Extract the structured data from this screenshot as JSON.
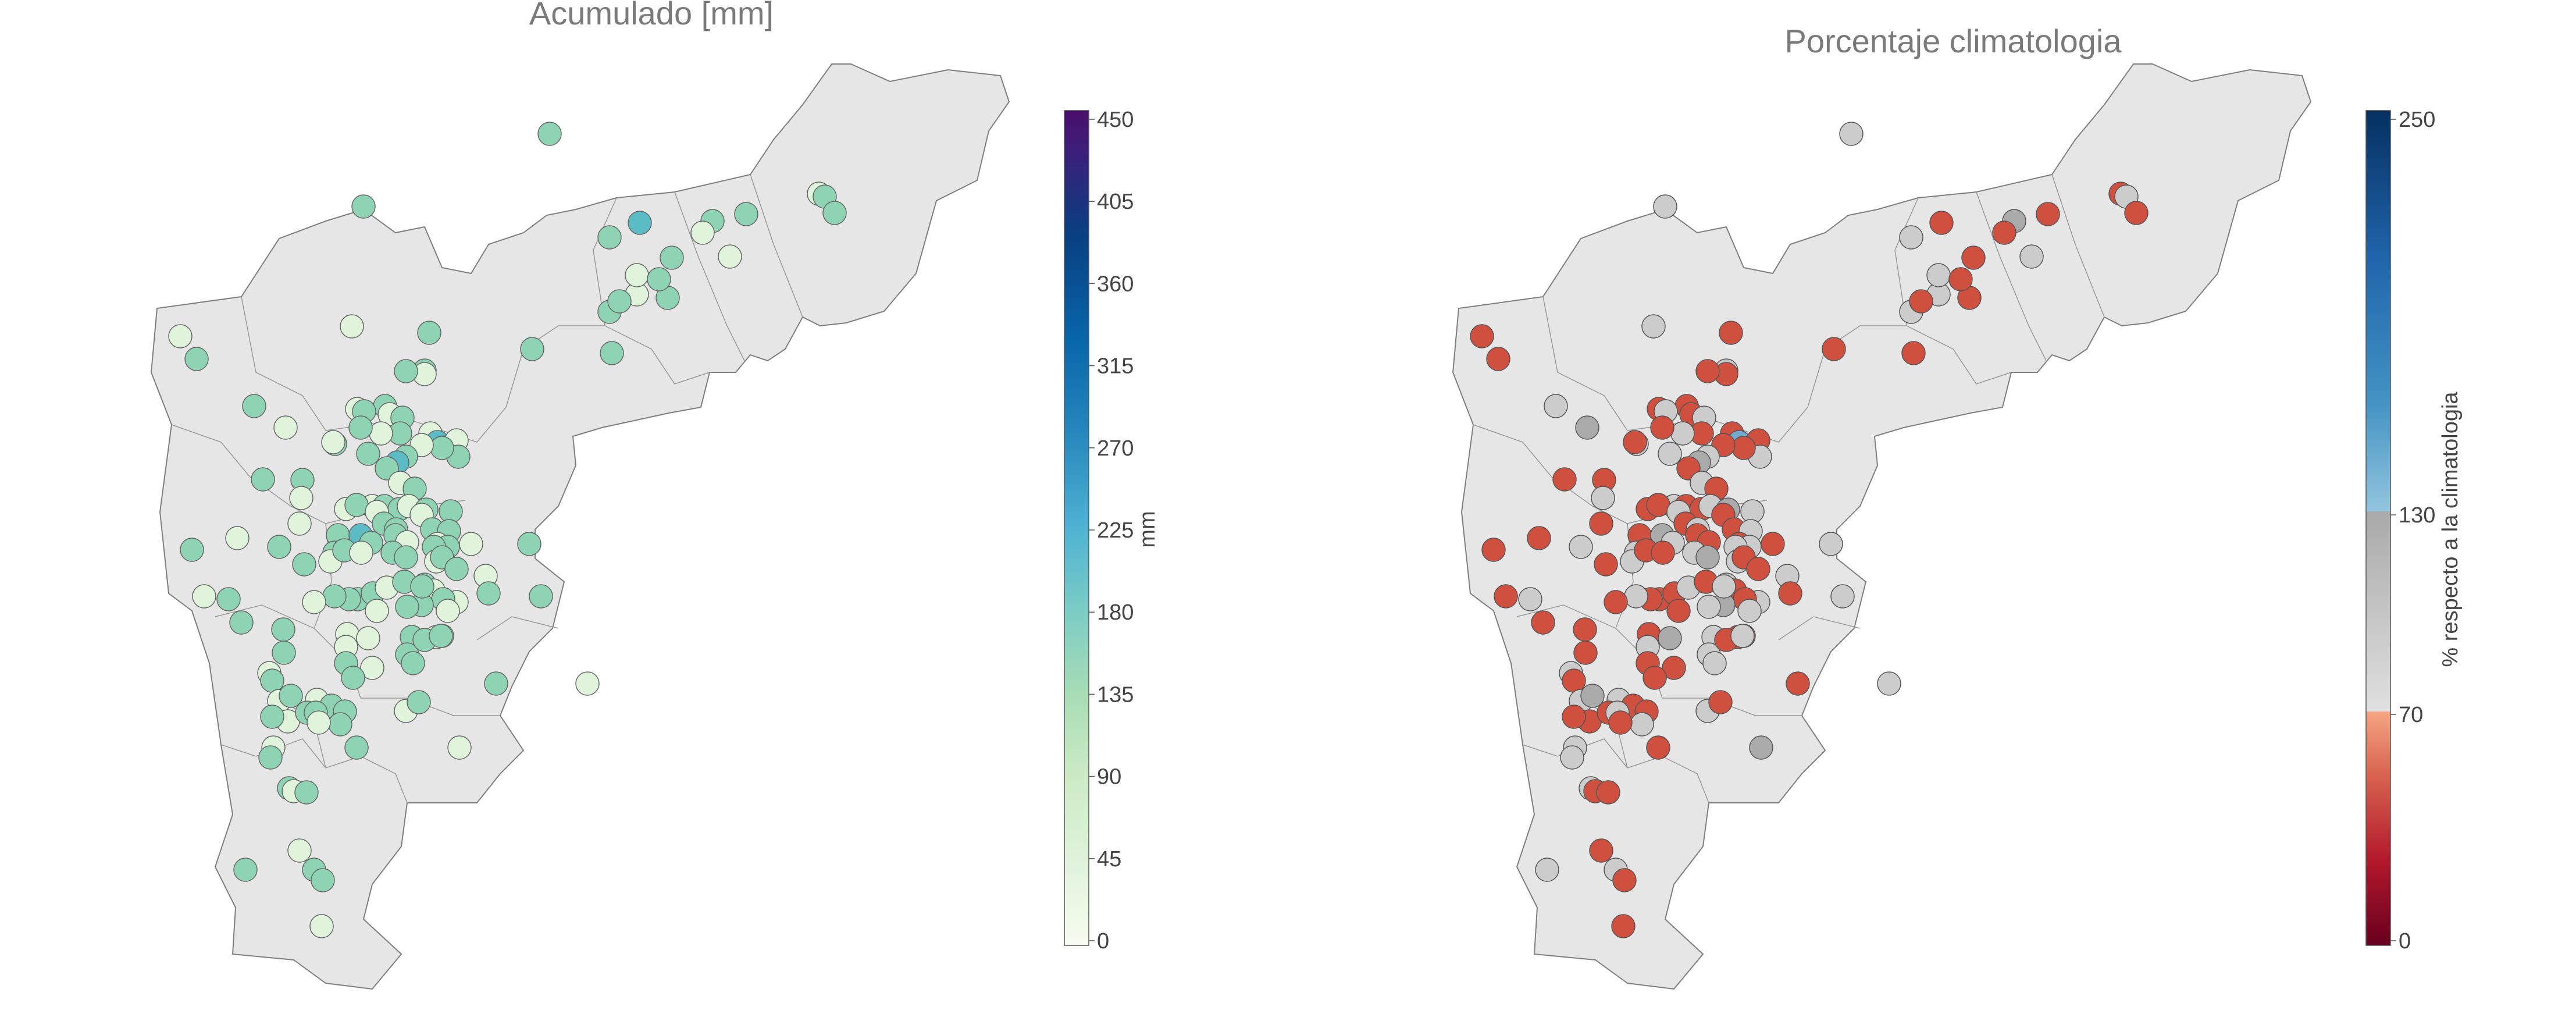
{
  "panels": [
    {
      "id": "left",
      "title": "Acumulado [mm]",
      "colorbar": {
        "label": "mm",
        "ticks": [
          "450",
          "405",
          "360",
          "315",
          "270",
          "225",
          "180",
          "135",
          "90",
          "45",
          "0"
        ]
      }
    },
    {
      "id": "right",
      "title": "Porcentaje climatologia",
      "colorbar": {
        "label": "% respecto a la climatologia",
        "ticks": [
          "250",
          "130",
          "70",
          "0"
        ]
      }
    }
  ],
  "colors": {
    "region_fill": "#e6e6e6",
    "region_stroke": "#7f7f7f",
    "title_text": "#7a7a7a",
    "tick_text": "#444444",
    "point_stroke": "#666666",
    "accum_low": "#e0f3db",
    "accum_mid": "#8fd3b5",
    "accum_high": "#5cbcc5",
    "pct_below": "#d05040",
    "pct_normal": "#cccccc",
    "pct_above": "#74a9cf"
  }
}
